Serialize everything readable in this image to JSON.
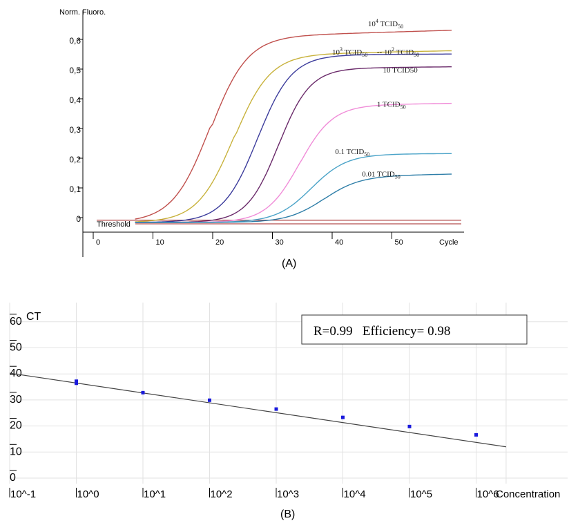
{
  "chart_data": [
    {
      "type": "line",
      "ylabel": "Norm. Fluoro.",
      "xlabel": "Cycle",
      "xlim": [
        0,
        62
      ],
      "ylim": [
        0,
        0.7
      ],
      "x_ticks": [
        "0",
        "10",
        "20",
        "30",
        "40",
        "50"
      ],
      "y_ticks": [
        "0",
        "0,1",
        "0,2",
        "0,3",
        "0,4",
        "0,5",
        "0,6"
      ],
      "threshold": {
        "label": "Threshold",
        "value": 0.01
      },
      "series": [
        {
          "name": "10^4 TCID50",
          "color": "#c0504d",
          "plateau": 0.635,
          "slope": 0.0006,
          "midpoint": 19.5,
          "k": 0.32
        },
        {
          "name": "10^3 TCID50",
          "color": "#c8b23c",
          "plateau": 0.57,
          "slope": 0.0004,
          "midpoint": 23.5,
          "k": 0.33
        },
        {
          "name": "10^2 TCID50",
          "color": "#3c3c9c",
          "plateau": 0.565,
          "slope": 0.0001,
          "midpoint": 27.5,
          "k": 0.35
        },
        {
          "name": "10 TCID50",
          "color": "#6a2a6a",
          "plateau": 0.52,
          "slope": 0.0002,
          "midpoint": 31.0,
          "k": 0.38
        },
        {
          "name": "1 TCID50",
          "color": "#f08cd8",
          "plateau": 0.395,
          "slope": 0.0003,
          "midpoint": 34.5,
          "k": 0.36
        },
        {
          "name": "0.1 TCID50",
          "color": "#4aa3c8",
          "plateau": 0.23,
          "slope": 0.0001,
          "midpoint": 36.5,
          "k": 0.34
        },
        {
          "name": "0.01 TCID50",
          "color": "#2e7ea8",
          "plateau": 0.155,
          "slope": 0.0004,
          "midpoint": 38.5,
          "k": 0.33
        }
      ],
      "annotations": [
        {
          "base": "10",
          "sup": "4",
          "rest": " TCID",
          "sub": "50",
          "x": 46,
          "y": 0.66
        },
        {
          "base": "10",
          "sup": "3",
          "rest": " TCID",
          "sub": "50",
          "x": 40,
          "y": 0.565
        },
        {
          "base": "10",
          "sup": "2",
          "rest": " TCID",
          "sub": "50",
          "x": 47.5,
          "y": 0.565,
          "prefix": "-- "
        },
        {
          "base": "10 TCID50",
          "sup": "",
          "rest": "",
          "sub": "",
          "x": 48.5,
          "y": 0.505
        },
        {
          "base": "1 TCID",
          "sup": "",
          "rest": "",
          "sub": "50",
          "x": 47.5,
          "y": 0.39
        },
        {
          "base": "0.1 TCID",
          "sup": "",
          "rest": "",
          "sub": "50",
          "x": 40.5,
          "y": 0.23
        },
        {
          "base": "0.01 TCID",
          "sup": "",
          "rest": "",
          "sub": "50",
          "x": 45,
          "y": 0.155
        }
      ]
    },
    {
      "type": "scatter",
      "ylabel": "CT",
      "xlabel": "Concentration",
      "x_log_exponents": [
        -1,
        0,
        1,
        2,
        3,
        4,
        5,
        6
      ],
      "x_ticks": [
        "10^-1",
        "10^0",
        "10^1",
        "10^2",
        "10^3",
        "10^4",
        "10^5",
        "10^6"
      ],
      "y_ticks": [
        "0",
        "10",
        "20",
        "30",
        "40",
        "50",
        "60"
      ],
      "ylim": [
        0,
        60
      ],
      "points": [
        {
          "exp": 0,
          "ct": 37.2
        },
        {
          "exp": 0,
          "ct": 36.4
        },
        {
          "exp": 1,
          "ct": 32.8
        },
        {
          "exp": 2,
          "ct": 29.9
        },
        {
          "exp": 3,
          "ct": 26.5
        },
        {
          "exp": 4,
          "ct": 23.3
        },
        {
          "exp": 5,
          "ct": 19.8
        },
        {
          "exp": 6,
          "ct": 16.6
        }
      ],
      "fit_line": {
        "start_exp": -1,
        "start_ct": 40.3,
        "end_exp": 6.45,
        "end_ct": 12.0
      },
      "grid": true,
      "stats_box": "R=0.99   Efficiency= 0.98"
    }
  ],
  "panel_labels": {
    "a": "(A)",
    "b": "(B)"
  }
}
